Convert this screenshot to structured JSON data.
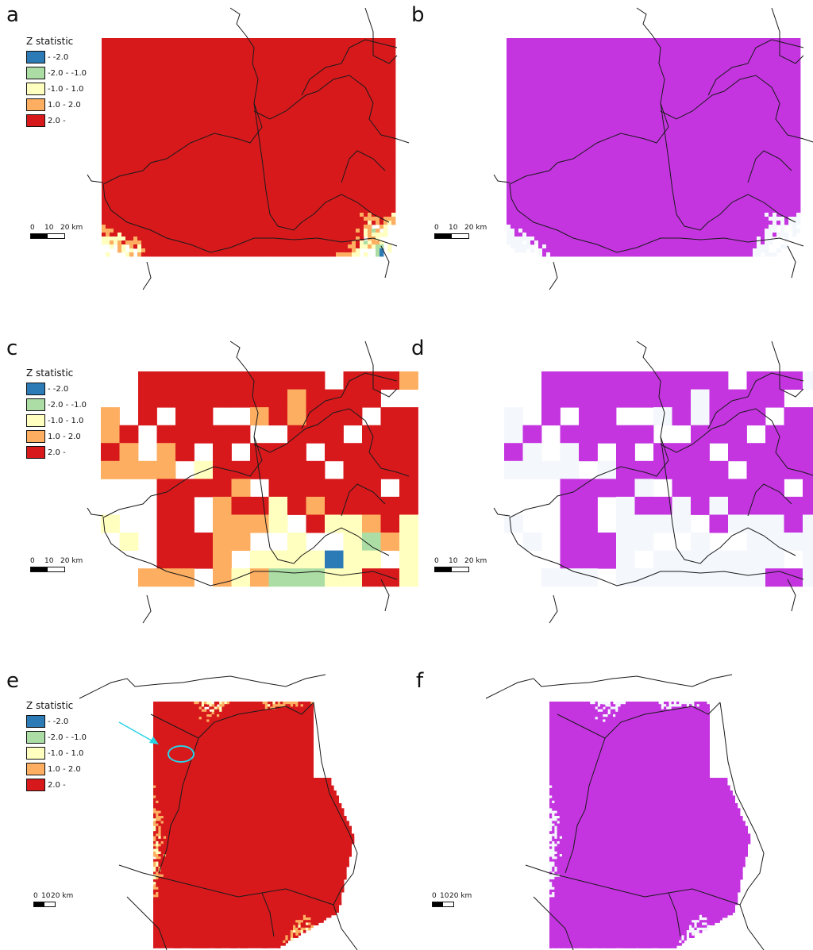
{
  "panels": [
    {
      "letter": "a",
      "style": "z",
      "grid": "fine"
    },
    {
      "letter": "b",
      "style": "sig",
      "grid": "fine"
    },
    {
      "letter": "c",
      "style": "z",
      "grid": "coarse"
    },
    {
      "letter": "d",
      "style": "sig",
      "grid": "coarse"
    },
    {
      "letter": "e",
      "style": "z",
      "grid": "fine2"
    },
    {
      "letter": "f",
      "style": "sig",
      "grid": "fine2"
    }
  ],
  "legend": {
    "title": "Z statistic",
    "items": [
      {
        "label": "- -2.0",
        "color": "#2c7bb6"
      },
      {
        "label": "-2.0 - -1.0",
        "color": "#abdda4"
      },
      {
        "label": "-1.0 - 1.0",
        "color": "#ffffbf"
      },
      {
        "label": "1.0 - 2.0",
        "color": "#fdae61"
      },
      {
        "label": "2.0 -",
        "color": "#d7191c"
      }
    ]
  },
  "scalebar": {
    "l0": "0",
    "l1": "10",
    "l2": "20 km"
  },
  "colors": {
    "significant": "#c435e0",
    "nonsig": "#f4f7fc",
    "boundary": "#1a1a1a",
    "arrow": "#28d3e6"
  }
}
